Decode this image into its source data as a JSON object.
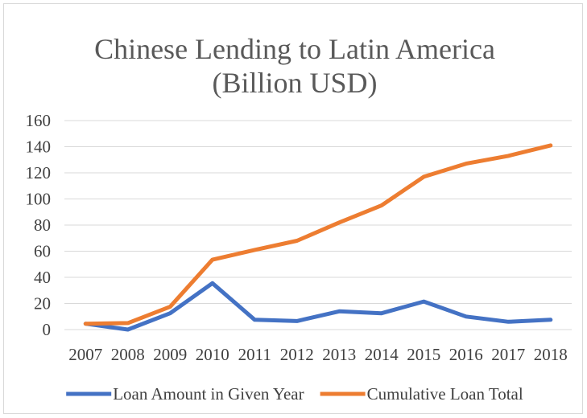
{
  "chart_data": {
    "type": "line",
    "title_lines": [
      "Chinese Lending to Latin America",
      "(Billion USD)"
    ],
    "categories": [
      "2007",
      "2008",
      "2009",
      "2010",
      "2011",
      "2012",
      "2013",
      "2014",
      "2015",
      "2016",
      "2017",
      "2018"
    ],
    "series": [
      {
        "name": "Loan Amount in Given Year",
        "color": "#4472c4",
        "values": [
          4.5,
          0,
          12.5,
          35.5,
          7.5,
          6.5,
          14,
          12.5,
          21.5,
          10,
          6,
          7.5
        ]
      },
      {
        "name": "Cumulative Loan Total",
        "color": "#ed7d31",
        "values": [
          4.5,
          5,
          17.5,
          53.5,
          61,
          68,
          82,
          95,
          117,
          127,
          133,
          141
        ]
      }
    ],
    "ylim": [
      0,
      160
    ],
    "yticks": [
      "0",
      "20",
      "40",
      "60",
      "80",
      "100",
      "120",
      "140",
      "160"
    ],
    "grid": true,
    "gridline_color": "#d9d9d9",
    "legend_position": "bottom"
  }
}
